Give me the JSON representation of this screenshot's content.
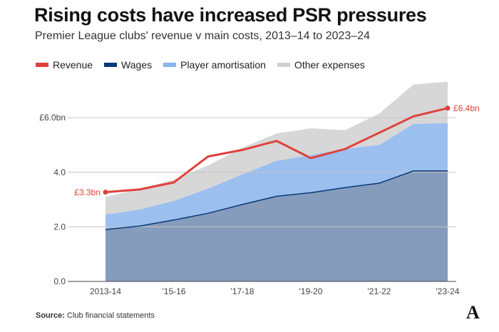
{
  "title": "Rising costs have increased PSR pressures",
  "subtitle": "Premier League clubs' revenue v main costs, 2013–14 to 2023–24",
  "legend": [
    {
      "label": "Revenue",
      "color": "#e0413a"
    },
    {
      "label": "Wages",
      "color": "#0b3a7a"
    },
    {
      "label": "Player amortisation",
      "color": "#8ab4ec"
    },
    {
      "label": "Other expenses",
      "color": "#d0d0d0"
    }
  ],
  "source": {
    "label": "Source:",
    "text": " Club financial statements"
  },
  "logo": "A",
  "chart_data": {
    "type": "area",
    "x": [
      "2013-14",
      "2014-15",
      "2015-16",
      "2016-17",
      "2017-18",
      "2018-19",
      "2019-20",
      "2020-21",
      "2021-22",
      "2022-23",
      "2023-24"
    ],
    "tick_labels": [
      "2013-14",
      "'15-16",
      "'17-18",
      "'19-20",
      "'21-22",
      "'23-24"
    ],
    "y_tick_labels": [
      "0.0",
      "2.0",
      "4.0",
      "£6.0bn"
    ],
    "ylim": [
      0,
      7.5
    ],
    "series": [
      {
        "name": "Wages",
        "type": "area",
        "color": "#0b3a7a",
        "values": [
          1.9,
          2.03,
          2.25,
          2.5,
          2.82,
          3.12,
          3.25,
          3.44,
          3.6,
          4.05,
          4.05
        ]
      },
      {
        "name": "Player amortisation",
        "type": "area",
        "color": "#8ab4ec",
        "values": [
          0.55,
          0.6,
          0.7,
          0.9,
          1.1,
          1.3,
          1.38,
          1.42,
          1.4,
          1.72,
          1.75
        ]
      },
      {
        "name": "Other expenses",
        "type": "area",
        "color": "#d0d0d0",
        "values": [
          0.65,
          0.75,
          0.78,
          0.85,
          0.98,
          1.0,
          0.98,
          0.68,
          1.15,
          1.45,
          1.52
        ]
      },
      {
        "name": "Revenue",
        "type": "line",
        "color": "#e0413a",
        "values": [
          3.27,
          3.37,
          3.63,
          4.58,
          4.82,
          5.15,
          4.52,
          4.85,
          5.45,
          6.05,
          6.35
        ]
      }
    ],
    "annotations": [
      {
        "text": "£3.3bn",
        "series": "Revenue",
        "index": 0,
        "side": "left"
      },
      {
        "text": "£6.4bn",
        "series": "Revenue",
        "index": 10,
        "side": "right"
      }
    ],
    "grid": true
  }
}
